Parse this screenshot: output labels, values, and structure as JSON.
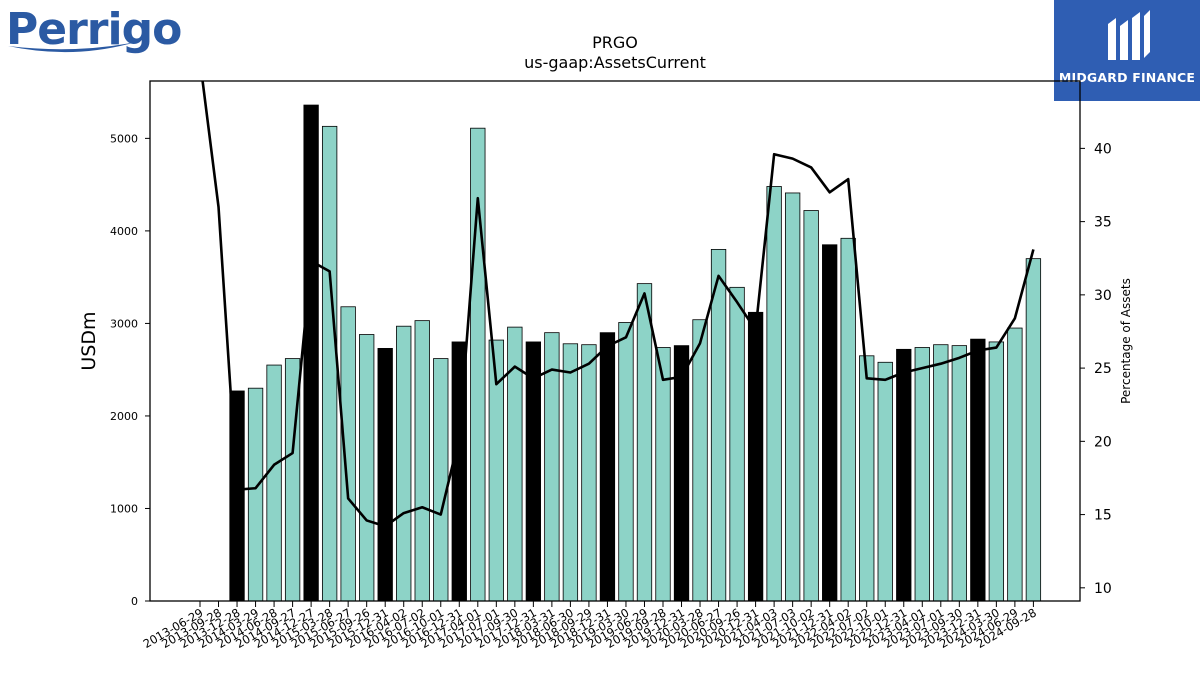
{
  "logos": {
    "left_brand": "Perrigo",
    "right_brand": "MIDGARD FINANCE"
  },
  "chart_data": {
    "type": "bar",
    "title": "PRGO",
    "subtitle": "us-gaap:AssetsCurrent",
    "ylabel": "USDm",
    "y2label": "Percentage of Assets",
    "ylim": [
      0,
      5620
    ],
    "y2lim": [
      9.1,
      44.6
    ],
    "yticks": [
      0,
      1000,
      2000,
      3000,
      4000,
      5000
    ],
    "y2ticks": [
      10,
      15,
      20,
      25,
      30,
      35,
      40
    ],
    "categories": [
      "2013-06-29",
      "2013-09-28",
      "2013-12-28",
      "2014-03-29",
      "2014-06-28",
      "2014-09-27",
      "2014-12-27",
      "2015-03-28",
      "2015-06-27",
      "2015-09-26",
      "2015-12-31",
      "2016-04-02",
      "2016-07-02",
      "2016-10-01",
      "2016-12-31",
      "2017-04-01",
      "2017-07-01",
      "2017-09-30",
      "2017-12-31",
      "2018-03-31",
      "2018-06-30",
      "2018-09-29",
      "2018-12-31",
      "2019-03-30",
      "2019-06-29",
      "2019-09-28",
      "2019-12-31",
      "2020-03-28",
      "2020-06-27",
      "2020-09-26",
      "2020-12-31",
      "2021-04-03",
      "2021-07-03",
      "2021-10-02",
      "2021-12-31",
      "2022-04-02",
      "2022-07-02",
      "2022-10-01",
      "2022-12-31",
      "2023-04-01",
      "2023-07-01",
      "2023-09-30",
      "2023-12-31",
      "2024-03-30",
      "2024-06-29",
      "2024-09-28"
    ],
    "series": [
      {
        "type": "bar",
        "values": [
          null,
          null,
          2270,
          2300,
          2550,
          2620,
          5360,
          5130,
          3180,
          2880,
          2730,
          2970,
          3030,
          2620,
          2800,
          5110,
          2820,
          2960,
          2800,
          2900,
          2780,
          2770,
          2900,
          3010,
          3430,
          2740,
          2760,
          3040,
          3800,
          3390,
          3120,
          4480,
          4410,
          4220,
          3850,
          3920,
          2650,
          2580,
          2720,
          2740,
          2770,
          2760,
          2830,
          2800,
          2950,
          3700
        ],
        "highlight": [
          false,
          false,
          true,
          false,
          false,
          false,
          true,
          false,
          false,
          false,
          true,
          false,
          false,
          false,
          true,
          false,
          false,
          false,
          true,
          false,
          false,
          false,
          true,
          false,
          false,
          false,
          true,
          false,
          false,
          false,
          true,
          false,
          false,
          false,
          true,
          false,
          false,
          false,
          true,
          false,
          false,
          false,
          true,
          false,
          false,
          false
        ]
      },
      {
        "type": "line",
        "axis": "right",
        "values": [
          46.0,
          36.0,
          16.7,
          16.8,
          18.4,
          19.2,
          32.3,
          31.6,
          16.1,
          14.6,
          14.2,
          15.1,
          15.5,
          15.0,
          20.3,
          36.6,
          23.9,
          25.1,
          24.3,
          24.9,
          24.7,
          25.3,
          26.5,
          27.1,
          30.1,
          24.2,
          24.4,
          26.7,
          31.3,
          29.5,
          27.6,
          39.6,
          39.3,
          38.7,
          37.0,
          37.9,
          24.3,
          24.2,
          24.7,
          25.0,
          25.3,
          25.7,
          26.2,
          26.4,
          28.4,
          33.1
        ]
      }
    ],
    "colors": {
      "bar": "#8dd3c7",
      "bar_highlight": "#000000",
      "line": "#000000"
    }
  }
}
